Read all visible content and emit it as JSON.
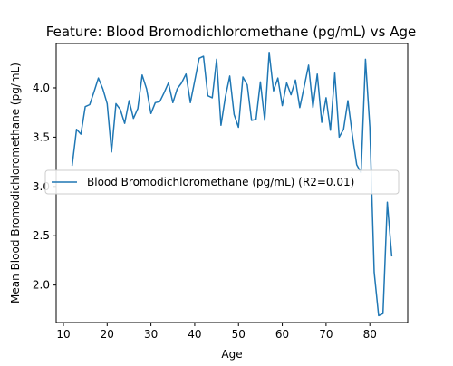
{
  "chart_data": {
    "type": "line",
    "title": "Feature: Blood Bromodichloromethane (pg/mL) vs Age",
    "xlabel": "Age",
    "ylabel": "Mean Blood Bromodichloromethane (pg/mL)",
    "xlim": [
      8.35,
      88.65
    ],
    "ylim": [
      1.62,
      4.45
    ],
    "xticks": [
      10,
      20,
      30,
      40,
      50,
      60,
      70,
      80
    ],
    "yticks": [
      2.0,
      2.5,
      3.0,
      3.5,
      4.0
    ],
    "ytick_labels": [
      "2.0",
      "2.5",
      "3.0",
      "3.5",
      "4.0"
    ],
    "grid": false,
    "legend_position": "center-left",
    "series": [
      {
        "name": "Blood Bromodichloromethane (pg/mL) (R2=0.01)",
        "color": "#1f77b4",
        "x": [
          12,
          13,
          14,
          15,
          16,
          17,
          18,
          19,
          20,
          21,
          22,
          23,
          24,
          25,
          26,
          27,
          28,
          29,
          30,
          31,
          32,
          33,
          34,
          35,
          36,
          37,
          38,
          39,
          40,
          41,
          42,
          43,
          44,
          45,
          46,
          47,
          48,
          49,
          50,
          51,
          52,
          53,
          54,
          55,
          56,
          57,
          58,
          59,
          60,
          61,
          62,
          63,
          64,
          65,
          66,
          67,
          68,
          69,
          70,
          71,
          72,
          73,
          74,
          75,
          76,
          77,
          78,
          79,
          80,
          81,
          82,
          83,
          84,
          85
        ],
        "y": [
          3.21,
          3.58,
          3.53,
          3.81,
          3.83,
          3.96,
          4.1,
          3.99,
          3.84,
          3.35,
          3.84,
          3.78,
          3.64,
          3.87,
          3.69,
          3.79,
          4.13,
          3.99,
          3.74,
          3.85,
          3.86,
          3.95,
          4.05,
          3.85,
          3.99,
          4.05,
          4.14,
          3.85,
          4.07,
          4.3,
          4.32,
          3.92,
          3.9,
          4.29,
          3.62,
          3.91,
          4.12,
          3.73,
          3.6,
          4.11,
          4.03,
          3.67,
          3.68,
          4.06,
          3.67,
          4.36,
          3.97,
          4.1,
          3.82,
          4.05,
          3.93,
          4.08,
          3.8,
          4.01,
          4.23,
          3.8,
          4.14,
          3.65,
          3.9,
          3.57,
          4.15,
          3.5,
          3.58,
          3.87,
          3.52,
          3.22,
          3.14,
          4.29,
          3.6,
          2.13,
          1.69,
          1.71,
          2.84,
          2.29
        ]
      }
    ]
  }
}
